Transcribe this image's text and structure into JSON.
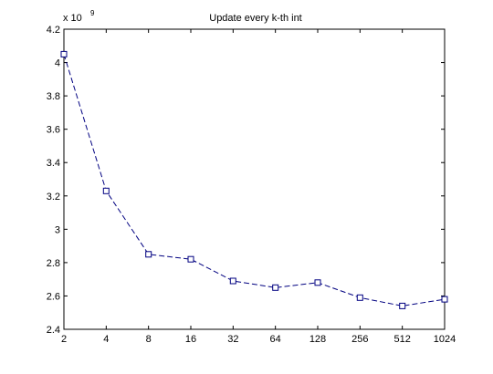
{
  "chart_data": {
    "type": "line",
    "title": "Update every k-th int",
    "xlabel": "",
    "ylabel": "",
    "y_multiplier_label": {
      "base": "x 10",
      "exponent": "9"
    },
    "x": [
      2,
      4,
      8,
      16,
      32,
      64,
      128,
      256,
      512,
      1024
    ],
    "x_tick_labels": [
      "2",
      "4",
      "8",
      "16",
      "32",
      "64",
      "128",
      "256",
      "512",
      "1024"
    ],
    "x_scale": "log2",
    "xlim": [
      2,
      1024
    ],
    "y_ticks": [
      2.4,
      2.6,
      2.8,
      3,
      3.2,
      3.4,
      3.6,
      3.8,
      4,
      4.2
    ],
    "y_tick_labels": [
      "2.4",
      "2.6",
      "2.8",
      "3",
      "3.2",
      "3.4",
      "3.6",
      "3.8",
      "4",
      "4.2"
    ],
    "ylim": [
      2.4,
      4.2
    ],
    "grid": false,
    "series": [
      {
        "values": [
          4.05,
          3.23,
          2.85,
          2.82,
          2.69,
          2.65,
          2.68,
          2.59,
          2.54,
          2.58
        ],
        "color": "#000080",
        "line_style": "dashed",
        "marker": "square"
      }
    ]
  }
}
